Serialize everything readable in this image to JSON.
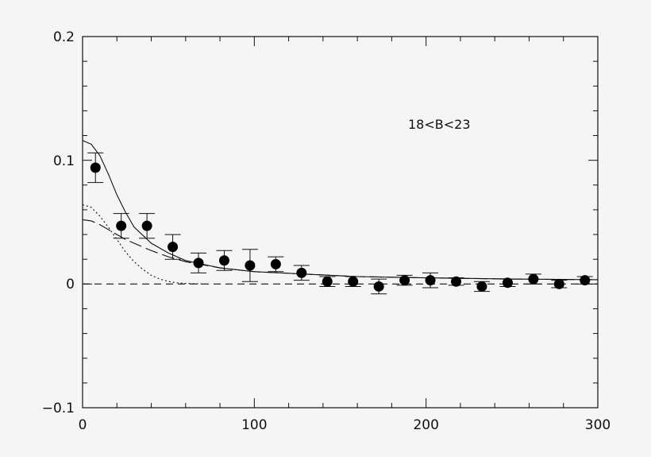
{
  "chart_data": {
    "type": "scatter",
    "title": "",
    "xlabel": "",
    "ylabel": "",
    "xlim": [
      0,
      300
    ],
    "ylim": [
      -0.1,
      0.2
    ],
    "x_ticks": [
      0,
      100,
      200,
      300
    ],
    "y_ticks": [
      -0.1,
      0,
      0.1,
      0.2
    ],
    "x_tick_labels": [
      "0",
      "100",
      "200",
      "300"
    ],
    "y_tick_labels": [
      "−0.1",
      "0",
      "0.1",
      "0.2"
    ],
    "grid": false,
    "annotation": "18<B<23",
    "points": [
      {
        "x": 7.5,
        "y": 0.094,
        "err": 0.012
      },
      {
        "x": 22.5,
        "y": 0.047,
        "err": 0.01
      },
      {
        "x": 37.5,
        "y": 0.047,
        "err": 0.01
      },
      {
        "x": 52.5,
        "y": 0.03,
        "err": 0.01
      },
      {
        "x": 67.5,
        "y": 0.017,
        "err": 0.008
      },
      {
        "x": 82.5,
        "y": 0.019,
        "err": 0.008
      },
      {
        "x": 97.5,
        "y": 0.015,
        "err": 0.013
      },
      {
        "x": 112.5,
        "y": 0.016,
        "err": 0.006
      },
      {
        "x": 127.5,
        "y": 0.009,
        "err": 0.006
      },
      {
        "x": 142.5,
        "y": 0.002,
        "err": 0.004
      },
      {
        "x": 157.5,
        "y": 0.002,
        "err": 0.004
      },
      {
        "x": 172.5,
        "y": -0.002,
        "err": 0.006
      },
      {
        "x": 187.5,
        "y": 0.003,
        "err": 0.004
      },
      {
        "x": 202.5,
        "y": 0.003,
        "err": 0.006
      },
      {
        "x": 217.5,
        "y": 0.002,
        "err": 0.003
      },
      {
        "x": 232.5,
        "y": -0.002,
        "err": 0.004
      },
      {
        "x": 247.5,
        "y": 0.001,
        "err": 0.003
      },
      {
        "x": 262.5,
        "y": 0.004,
        "err": 0.004
      },
      {
        "x": 277.5,
        "y": 0.0,
        "err": 0.003
      },
      {
        "x": 292.5,
        "y": 0.003,
        "err": 0.003
      }
    ],
    "curves": [
      {
        "style": "solid",
        "x": [
          0,
          5,
          10,
          15,
          20,
          25,
          30,
          40,
          50,
          60,
          80,
          100,
          130,
          160,
          200,
          250,
          300
        ],
        "y": [
          0.116,
          0.113,
          0.104,
          0.089,
          0.072,
          0.058,
          0.046,
          0.033,
          0.025,
          0.019,
          0.013,
          0.01,
          0.008,
          0.006,
          0.005,
          0.004,
          0.0035
        ]
      },
      {
        "style": "long-dash",
        "x": [
          0,
          5,
          10,
          15,
          20,
          25,
          30,
          40,
          50,
          60,
          80,
          100,
          130,
          160,
          200,
          250,
          300
        ],
        "y": [
          0.052,
          0.051,
          0.048,
          0.044,
          0.04,
          0.036,
          0.033,
          0.027,
          0.022,
          0.018,
          0.013,
          0.01,
          0.008,
          0.006,
          0.005,
          0.004,
          0.0035
        ]
      },
      {
        "style": "dotted",
        "x": [
          0,
          5,
          10,
          15,
          20,
          25,
          30,
          35,
          40,
          45,
          50,
          55,
          60,
          70
        ],
        "y": [
          0.064,
          0.062,
          0.055,
          0.046,
          0.036,
          0.026,
          0.018,
          0.012,
          0.007,
          0.004,
          0.002,
          0.001,
          0.0005,
          0.0
        ]
      },
      {
        "style": "dash",
        "x": [
          0,
          300
        ],
        "y": [
          0,
          0
        ]
      }
    ]
  }
}
